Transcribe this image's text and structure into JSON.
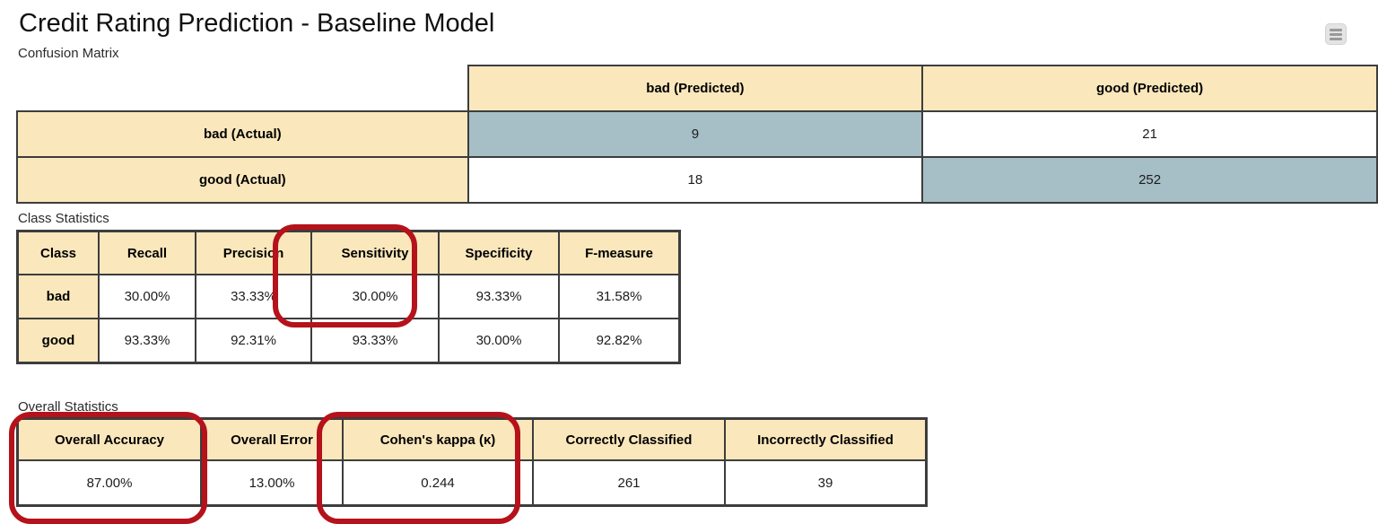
{
  "title": "Credit Rating Prediction - Baseline Model",
  "menu": {
    "icon": "hamburger-menu"
  },
  "confusion_matrix": {
    "label": "Confusion Matrix",
    "col_headers": [
      "bad (Predicted)",
      "good (Predicted)"
    ],
    "rows": [
      {
        "header": "bad (Actual)",
        "values": [
          "9",
          "21"
        ]
      },
      {
        "header": "good (Actual)",
        "values": [
          "18",
          "252"
        ]
      }
    ],
    "diagonal_highlighted": true
  },
  "class_statistics": {
    "label": "Class Statistics",
    "headers": [
      "Class",
      "Recall",
      "Precision",
      "Sensitivity",
      "Specificity",
      "F-measure"
    ],
    "rows": [
      {
        "class": "bad",
        "values": [
          "30.00%",
          "33.33%",
          "30.00%",
          "93.33%",
          "31.58%"
        ]
      },
      {
        "class": "good",
        "values": [
          "93.33%",
          "92.31%",
          "93.33%",
          "30.00%",
          "92.82%"
        ]
      }
    ]
  },
  "overall_statistics": {
    "label": "Overall Statistics",
    "headers": [
      "Overall Accuracy",
      "Overall Error",
      "Cohen's kappa (κ)",
      "Correctly Classified",
      "Incorrectly Classified"
    ],
    "values": [
      "87.00%",
      "13.00%",
      "0.244",
      "261",
      "39"
    ]
  },
  "annotations": {
    "highlighted_items": [
      "Sensitivity (bad) 30.00%",
      "Overall Accuracy 87.00%",
      "Cohen's kappa (κ) 0.244"
    ]
  },
  "colors": {
    "table_header_bg": "#FAE7BC",
    "diagonal_cell_bg": "#A6BEC6",
    "table_border": "#3D3D3D",
    "annotation_red": "#B5121B"
  }
}
